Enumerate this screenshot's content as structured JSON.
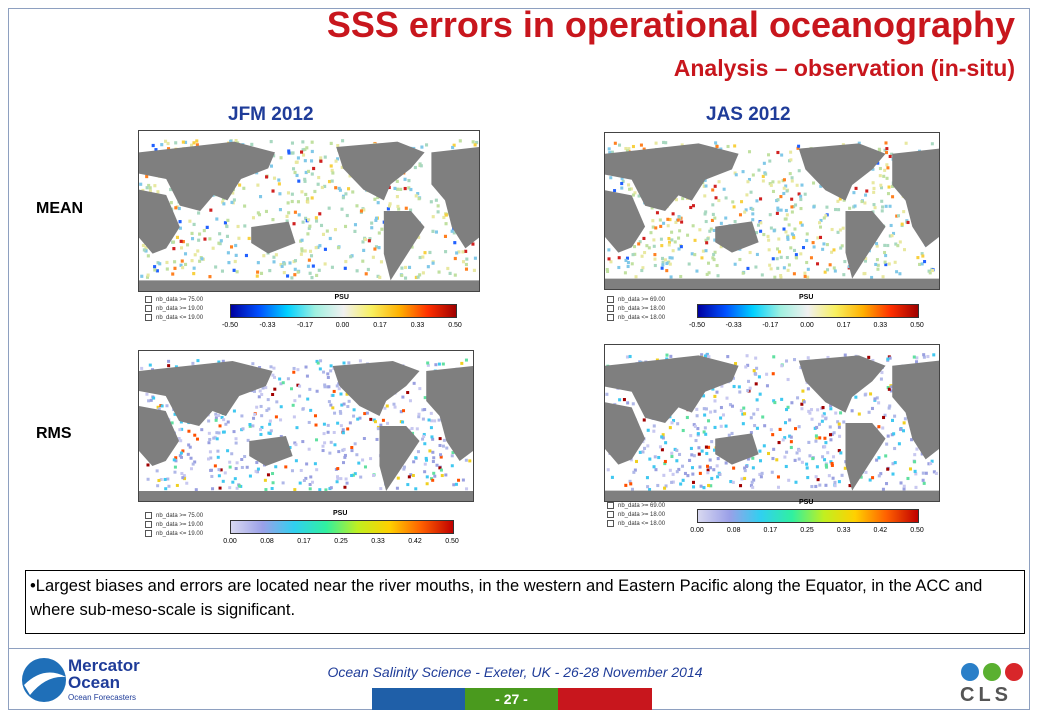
{
  "header": {
    "title": "SSS errors in operational oceanography",
    "subtitle": "Analysis – observation (in-situ)"
  },
  "columns": [
    "JFM  2012",
    "JAS 2012"
  ],
  "rows": [
    "MEAN",
    "RMS"
  ],
  "panels": [
    {
      "legend": [
        "nb_data >= 75.00",
        "nb_data >= 19.00",
        "nb_data <= 19.00"
      ],
      "unit": "PSU",
      "ticks": [
        "-0.50",
        "-0.33",
        "-0.17",
        "0.00",
        "0.17",
        "0.33",
        "0.50"
      ]
    },
    {
      "legend": [
        "nb_data >= 69.00",
        "nb_data >= 18.00",
        "nb_data <= 18.00"
      ],
      "unit": "PSU",
      "ticks": [
        "-0.50",
        "-0.33",
        "-0.17",
        "0.00",
        "0.17",
        "0.33",
        "0.50"
      ]
    },
    {
      "legend": [
        "nb_data >= 75.00",
        "nb_data >= 19.00",
        "nb_data <= 19.00"
      ],
      "unit": "PSU",
      "ticks": [
        "0.00",
        "0.08",
        "0.17",
        "0.25",
        "0.33",
        "0.42",
        "0.50"
      ]
    },
    {
      "legend": [
        "nb_data >= 69.00",
        "nb_data >= 18.00",
        "nb_data <= 18.00"
      ],
      "unit": "PSU",
      "ticks": [
        "0.00",
        "0.08",
        "0.17",
        "0.25",
        "0.33",
        "0.42",
        "0.50"
      ]
    }
  ],
  "note": "•Largest biases and errors are located near the river mouths, in the western and Eastern Pacific along the Equator, in the ACC and where sub-meso-scale is significant.",
  "footer": {
    "text": "Ocean Salinity Science - Exeter, UK - 26-28 November 2014",
    "page": "- 27 -",
    "logo_left": {
      "name": "Mercator",
      "name2": "Ocean",
      "tagline": "Ocean Forecasters"
    },
    "logo_right": "CLS"
  }
}
